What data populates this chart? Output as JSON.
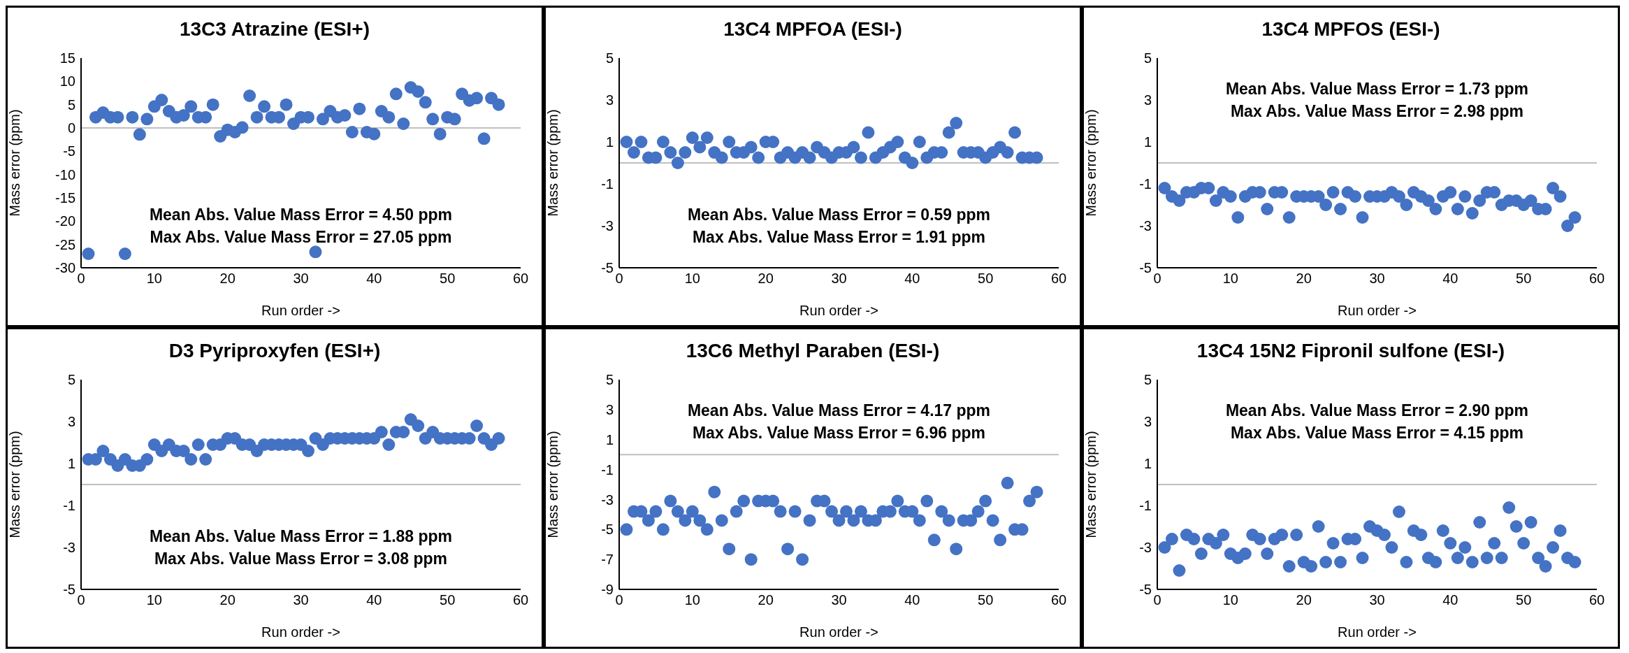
{
  "chart_data": [
    {
      "type": "scatter",
      "title": "13C3 Atrazine (ESI+)",
      "xlabel": "Run order ->",
      "ylabel": "Mass error (ppm)",
      "color": "#4472c4",
      "marker": "circle",
      "grid": false,
      "legend": false,
      "x": [
        1,
        2,
        3,
        4,
        5,
        6,
        7,
        8,
        9,
        10,
        11,
        12,
        13,
        14,
        15,
        16,
        17,
        18,
        19,
        20,
        21,
        22,
        23,
        24,
        25,
        26,
        27,
        28,
        29,
        30,
        31,
        32,
        33,
        34,
        35,
        36,
        37,
        38,
        39,
        40,
        41,
        42,
        43,
        44,
        45,
        46,
        47,
        48,
        49,
        50,
        51,
        52,
        53,
        54,
        55,
        56,
        57
      ],
      "values": [
        -27,
        2.3,
        3.3,
        2.3,
        2.3,
        -27,
        2.3,
        -1.4,
        1.9,
        4.6,
        6.0,
        3.6,
        2.3,
        2.7,
        4.6,
        2.3,
        2.3,
        5.0,
        -1.8,
        -0.4,
        -0.9,
        0.1,
        6.9,
        2.3,
        4.6,
        2.3,
        2.3,
        5.0,
        0.9,
        2.3,
        2.3,
        -26.6,
        1.9,
        3.6,
        2.3,
        2.7,
        -0.9,
        4.1,
        -0.9,
        -1.3,
        3.6,
        2.3,
        7.3,
        0.9,
        8.7,
        7.8,
        5.5,
        1.9,
        -1.3,
        2.3,
        1.9,
        7.3,
        5.9,
        6.4,
        -2.3,
        6.4,
        5.0
      ],
      "xlim": [
        0,
        60
      ],
      "xticks": [
        0,
        10,
        20,
        30,
        40,
        50,
        60
      ],
      "ylim": [
        -30,
        15
      ],
      "yticks": [
        -30,
        -25,
        -20,
        -15,
        -10,
        -5,
        0,
        5,
        10,
        15
      ],
      "ref_lines": [
        {
          "axis": "y",
          "value": 0,
          "color": "#bfbfbf"
        }
      ],
      "annotations": [
        "Mean Abs. Value Mass Error = 4.50 ppm",
        "Max Abs. Value Mass Error = 27.05 ppm"
      ]
    },
    {
      "type": "scatter",
      "title": "13C4 MPFOA (ESI-)",
      "xlabel": "Run order ->",
      "ylabel": "Mass error (ppm)",
      "color": "#4472c4",
      "marker": "circle",
      "grid": false,
      "legend": false,
      "x": [
        1,
        2,
        3,
        4,
        5,
        6,
        7,
        8,
        9,
        10,
        11,
        12,
        13,
        14,
        15,
        16,
        17,
        18,
        19,
        20,
        21,
        22,
        23,
        24,
        25,
        26,
        27,
        28,
        29,
        30,
        31,
        32,
        33,
        34,
        35,
        36,
        37,
        38,
        39,
        40,
        41,
        42,
        43,
        44,
        45,
        46,
        47,
        48,
        49,
        50,
        51,
        52,
        53,
        54,
        55,
        56,
        57
      ],
      "values": [
        1.0,
        0.5,
        1.0,
        0.25,
        0.25,
        1.0,
        0.5,
        0.0,
        0.5,
        1.2,
        0.75,
        1.2,
        0.5,
        0.25,
        1.0,
        0.5,
        0.5,
        0.75,
        0.25,
        1.0,
        1.0,
        0.25,
        0.5,
        0.25,
        0.5,
        0.25,
        0.75,
        0.5,
        0.25,
        0.5,
        0.5,
        0.75,
        0.25,
        1.45,
        0.25,
        0.5,
        0.75,
        1.0,
        0.25,
        0.0,
        1.0,
        0.25,
        0.5,
        0.5,
        1.45,
        1.9,
        0.5,
        0.5,
        0.5,
        0.25,
        0.5,
        0.75,
        0.5,
        1.45,
        0.25,
        0.25,
        0.25
      ],
      "xlim": [
        0,
        60
      ],
      "xticks": [
        0,
        10,
        20,
        30,
        40,
        50,
        60
      ],
      "ylim": [
        -5,
        5
      ],
      "yticks": [
        -5,
        -3,
        -1,
        1,
        3,
        5
      ],
      "ref_lines": [
        {
          "axis": "y",
          "value": 0,
          "color": "#bfbfbf"
        }
      ],
      "annotations": [
        "Mean Abs. Value Mass Error = 0.59 ppm",
        "Max Abs. Value Mass Error = 1.91 ppm"
      ]
    },
    {
      "type": "scatter",
      "title": "13C4 MPFOS (ESI-)",
      "xlabel": "Run order ->",
      "ylabel": "Mass error (ppm)",
      "color": "#4472c4",
      "marker": "circle",
      "grid": false,
      "legend": false,
      "x": [
        1,
        2,
        3,
        4,
        5,
        6,
        7,
        8,
        9,
        10,
        11,
        12,
        13,
        14,
        15,
        16,
        17,
        18,
        19,
        20,
        21,
        22,
        23,
        24,
        25,
        26,
        27,
        28,
        29,
        30,
        31,
        32,
        33,
        34,
        35,
        36,
        37,
        38,
        39,
        40,
        41,
        42,
        43,
        44,
        45,
        46,
        47,
        48,
        49,
        50,
        51,
        52,
        53,
        54,
        55,
        56,
        57
      ],
      "values": [
        -1.2,
        -1.6,
        -1.8,
        -1.4,
        -1.4,
        -1.2,
        -1.2,
        -1.8,
        -1.4,
        -1.6,
        -2.6,
        -1.6,
        -1.4,
        -1.4,
        -2.2,
        -1.4,
        -1.4,
        -2.6,
        -1.6,
        -1.6,
        -1.6,
        -1.6,
        -2.0,
        -1.4,
        -2.2,
        -1.4,
        -1.6,
        -2.6,
        -1.6,
        -1.6,
        -1.6,
        -1.4,
        -1.6,
        -2.0,
        -1.4,
        -1.6,
        -1.8,
        -2.2,
        -1.6,
        -1.4,
        -2.2,
        -1.6,
        -2.4,
        -1.8,
        -1.4,
        -1.4,
        -2.0,
        -1.8,
        -1.8,
        -2.0,
        -1.8,
        -2.2,
        -2.2,
        -1.2,
        -1.6,
        -3.0,
        -2.6
      ],
      "xlim": [
        0,
        60
      ],
      "xticks": [
        0,
        10,
        20,
        30,
        40,
        50,
        60
      ],
      "ylim": [
        -5,
        5
      ],
      "yticks": [
        -5,
        -3,
        -1,
        1,
        3,
        5
      ],
      "ref_lines": [
        {
          "axis": "y",
          "value": 0,
          "color": "#bfbfbf"
        }
      ],
      "annotations": [
        "Mean Abs. Value Mass Error = 1.73 ppm",
        "Max Abs. Value Mass Error = 2.98 ppm"
      ]
    },
    {
      "type": "scatter",
      "title": "D3 Pyriproxyfen (ESI+)",
      "xlabel": "Run order ->",
      "ylabel": "Mass error (ppm)",
      "color": "#4472c4",
      "marker": "circle",
      "grid": false,
      "legend": false,
      "x": [
        1,
        2,
        3,
        4,
        5,
        6,
        7,
        8,
        9,
        10,
        11,
        12,
        13,
        14,
        15,
        16,
        17,
        18,
        19,
        20,
        21,
        22,
        23,
        24,
        25,
        26,
        27,
        28,
        29,
        30,
        31,
        32,
        33,
        34,
        35,
        36,
        37,
        38,
        39,
        40,
        41,
        42,
        43,
        44,
        45,
        46,
        47,
        48,
        49,
        50,
        51,
        52,
        53,
        54,
        55,
        56,
        57
      ],
      "values": [
        1.2,
        1.2,
        1.6,
        1.2,
        0.9,
        1.2,
        0.9,
        0.9,
        1.2,
        1.9,
        1.6,
        1.9,
        1.6,
        1.6,
        1.2,
        1.9,
        1.2,
        1.9,
        1.9,
        2.2,
        2.2,
        1.9,
        1.9,
        1.6,
        1.9,
        1.9,
        1.9,
        1.9,
        1.9,
        1.9,
        1.6,
        2.2,
        1.9,
        2.2,
        2.2,
        2.2,
        2.2,
        2.2,
        2.2,
        2.2,
        2.5,
        1.9,
        2.5,
        2.5,
        3.1,
        2.8,
        2.2,
        2.5,
        2.2,
        2.2,
        2.2,
        2.2,
        2.2,
        2.8,
        2.2,
        1.9,
        2.2
      ],
      "xlim": [
        0,
        60
      ],
      "xticks": [
        0,
        10,
        20,
        30,
        40,
        50,
        60
      ],
      "ylim": [
        -5,
        5
      ],
      "yticks": [
        -5,
        -3,
        -1,
        1,
        3,
        5
      ],
      "ref_lines": [
        {
          "axis": "y",
          "value": 0,
          "color": "#bfbfbf"
        }
      ],
      "annotations": [
        "Mean Abs. Value Mass Error = 1.88 ppm",
        "Max Abs. Value Mass Error = 3.08 ppm"
      ]
    },
    {
      "type": "scatter",
      "title": "13C6 Methyl Paraben (ESI-)",
      "xlabel": "Run order ->",
      "ylabel": "Mass error (ppm)",
      "color": "#4472c4",
      "marker": "circle",
      "grid": false,
      "legend": false,
      "x": [
        1,
        2,
        3,
        4,
        5,
        6,
        7,
        8,
        9,
        10,
        11,
        12,
        13,
        14,
        15,
        16,
        17,
        18,
        19,
        20,
        21,
        22,
        23,
        24,
        25,
        26,
        27,
        28,
        29,
        30,
        31,
        32,
        33,
        34,
        35,
        36,
        37,
        38,
        39,
        40,
        41,
        42,
        43,
        44,
        45,
        46,
        47,
        48,
        49,
        50,
        51,
        52,
        53,
        54,
        55,
        56,
        57
      ],
      "values": [
        -5.0,
        -3.8,
        -3.8,
        -4.4,
        -3.8,
        -5.0,
        -3.1,
        -3.8,
        -4.4,
        -3.8,
        -4.4,
        -5.0,
        -2.5,
        -4.4,
        -6.3,
        -3.8,
        -3.1,
        -7.0,
        -3.1,
        -3.1,
        -3.1,
        -3.8,
        -6.3,
        -3.8,
        -7.0,
        -4.4,
        -3.1,
        -3.1,
        -3.8,
        -4.4,
        -3.8,
        -4.4,
        -3.8,
        -4.4,
        -4.4,
        -3.8,
        -3.8,
        -3.1,
        -3.8,
        -3.8,
        -4.4,
        -3.1,
        -5.7,
        -3.8,
        -4.4,
        -6.3,
        -4.4,
        -4.4,
        -3.8,
        -3.1,
        -4.4,
        -5.7,
        -1.9,
        -5.0,
        -5.0,
        -3.1,
        -2.5
      ],
      "xlim": [
        0,
        60
      ],
      "xticks": [
        0,
        10,
        20,
        30,
        40,
        50,
        60
      ],
      "ylim": [
        -9,
        5
      ],
      "yticks": [
        -9,
        -7,
        -5,
        -3,
        -1,
        1,
        3,
        5
      ],
      "ref_lines": [
        {
          "axis": "y",
          "value": 0,
          "color": "#bfbfbf"
        }
      ],
      "annotations": [
        "Mean Abs. Value Mass Error = 4.17 ppm",
        "Max Abs. Value Mass Error = 6.96 ppm"
      ]
    },
    {
      "type": "scatter",
      "title": "13C4 15N2 Fipronil sulfone (ESI-)",
      "xlabel": "Run order ->",
      "ylabel": "Mass error (ppm)",
      "color": "#4472c4",
      "marker": "circle",
      "grid": false,
      "legend": false,
      "x": [
        1,
        2,
        3,
        4,
        5,
        6,
        7,
        8,
        9,
        10,
        11,
        12,
        13,
        14,
        15,
        16,
        17,
        18,
        19,
        20,
        21,
        22,
        23,
        24,
        25,
        26,
        27,
        28,
        29,
        30,
        31,
        32,
        33,
        34,
        35,
        36,
        37,
        38,
        39,
        40,
        41,
        42,
        43,
        44,
        45,
        46,
        47,
        48,
        49,
        50,
        51,
        52,
        53,
        54,
        55,
        56,
        57
      ],
      "values": [
        -3.0,
        -2.6,
        -4.1,
        -2.4,
        -2.6,
        -3.3,
        -2.6,
        -2.8,
        -2.4,
        -3.3,
        -3.5,
        -3.3,
        -2.4,
        -2.6,
        -3.3,
        -2.6,
        -2.4,
        -3.9,
        -2.4,
        -3.7,
        -3.9,
        -2.0,
        -3.7,
        -2.8,
        -3.7,
        -2.6,
        -2.6,
        -3.5,
        -2.0,
        -2.2,
        -2.4,
        -3.0,
        -1.3,
        -3.7,
        -2.2,
        -2.4,
        -3.5,
        -3.7,
        -2.2,
        -2.8,
        -3.5,
        -3.0,
        -3.7,
        -1.8,
        -3.5,
        -2.8,
        -3.5,
        -1.1,
        -2.0,
        -2.8,
        -1.8,
        -3.5,
        -3.9,
        -3.0,
        -2.2,
        -3.5,
        -3.7
      ],
      "xlim": [
        0,
        60
      ],
      "xticks": [
        0,
        10,
        20,
        30,
        40,
        50,
        60
      ],
      "ylim": [
        -5,
        5
      ],
      "yticks": [
        -5,
        -3,
        -1,
        1,
        3,
        5
      ],
      "ref_lines": [
        {
          "axis": "y",
          "value": 0,
          "color": "#bfbfbf"
        }
      ],
      "annotations": [
        "Mean Abs. Value Mass Error = 2.90 ppm",
        "Max Abs. Value Mass Error = 4.15 ppm"
      ]
    }
  ]
}
